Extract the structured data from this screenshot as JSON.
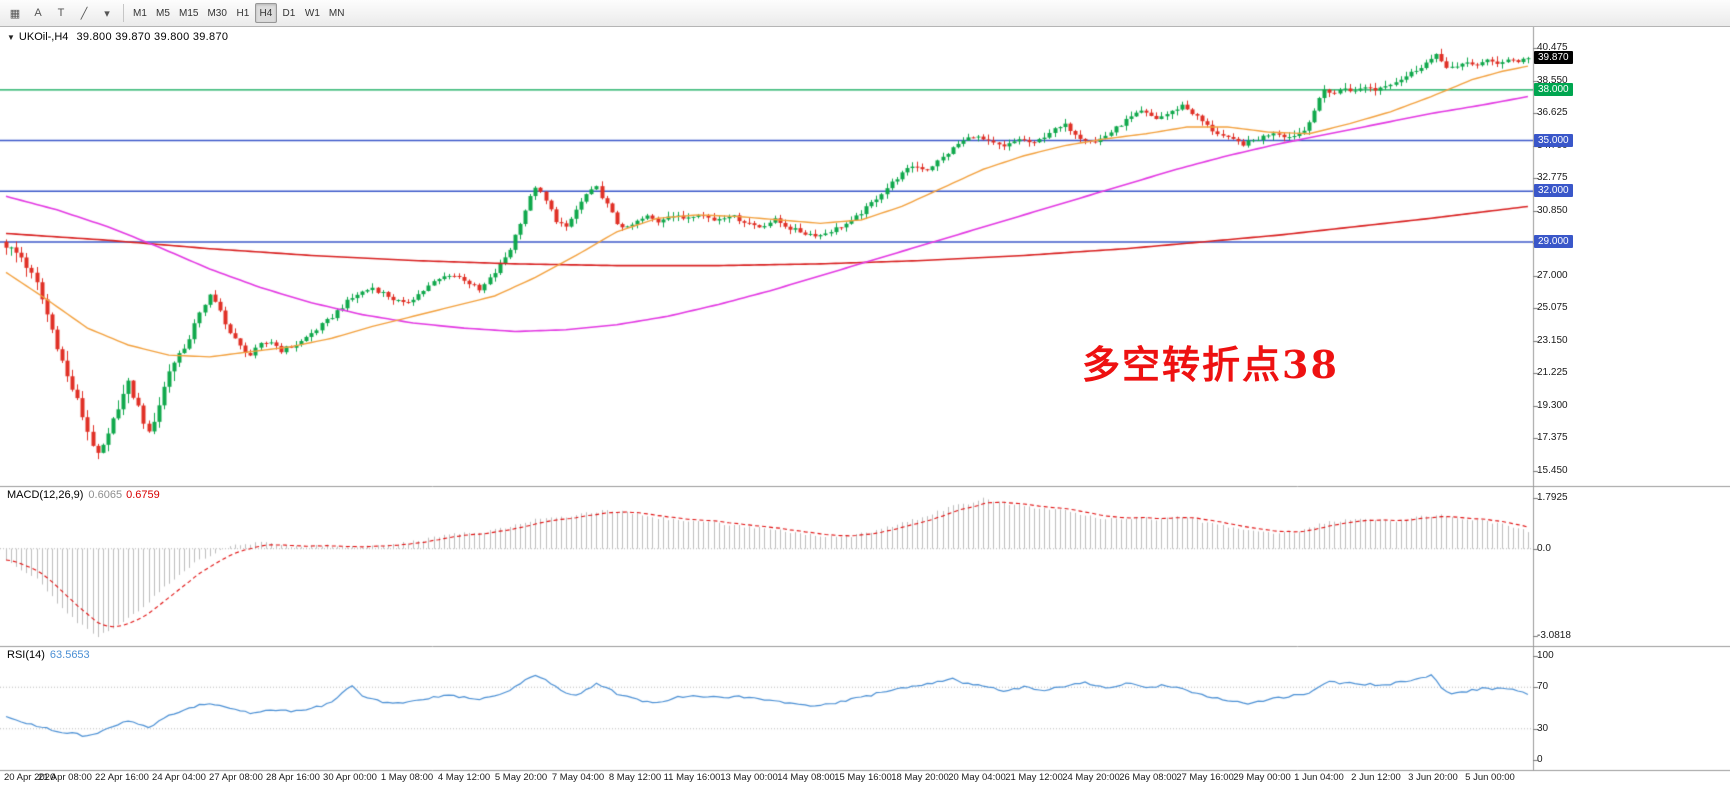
{
  "toolbar": {
    "tools": [
      {
        "name": "chart-grid-icon",
        "glyph": "▦"
      },
      {
        "name": "text-annotation-icon",
        "glyph": "A"
      },
      {
        "name": "template-icon",
        "glyph": "T"
      },
      {
        "name": "line-studies-icon",
        "glyph": "╱"
      },
      {
        "name": "dropdown-caret-icon",
        "glyph": "▾"
      }
    ],
    "timeframes": [
      "M1",
      "M5",
      "M15",
      "M30",
      "H1",
      "H4",
      "D1",
      "W1",
      "MN"
    ],
    "active_timeframe": "H4"
  },
  "chart": {
    "symbol_label": "UKOil-,H4",
    "ohlc_label": "39.800 39.870 39.800 39.870",
    "current_price": "39.870",
    "annotation": "多空转折点38",
    "price_axis": [
      "40.475",
      "38.550",
      "36.625",
      "34.700",
      "32.775",
      "30.850",
      "28.925",
      "27.000",
      "25.075",
      "23.150",
      "21.225",
      "19.300",
      "17.375",
      "15.450"
    ],
    "levels": [
      {
        "label": "38.000",
        "price": 38,
        "color": "#00a650"
      },
      {
        "label": "35.000",
        "price": 35,
        "color": "#3a57c9"
      },
      {
        "label": "32.000",
        "price": 32,
        "color": "#3a57c9"
      },
      {
        "label": "29.000",
        "price": 29,
        "color": "#3a57c9"
      }
    ]
  },
  "macd": {
    "name": "MACD(12,26,9)",
    "value_main": "0.6065",
    "value_signal": "0.6759",
    "axis": [
      "1.7925",
      "0.0",
      "-3.0818"
    ]
  },
  "rsi": {
    "name": "RSI(14)",
    "value": "63.5653",
    "axis": [
      "100",
      "70",
      "30",
      "0"
    ]
  },
  "dates": [
    "20 Apr 2020",
    "21 Apr 08:00",
    "22 Apr 16:00",
    "24 Apr 04:00",
    "27 Apr 08:00",
    "28 Apr 16:00",
    "30 Apr 00:00",
    "1 May 08:00",
    "4 May 12:00",
    "5 May 20:00",
    "7 May 04:00",
    "8 May 12:00",
    "11 May 16:00",
    "13 May 00:00",
    "14 May 08:00",
    "15 May 16:00",
    "18 May 20:00",
    "20 May 04:00",
    "21 May 12:00",
    "24 May 20:00",
    "26 May 08:00",
    "27 May 16:00",
    "29 May 00:00",
    "1 Jun 04:00",
    "2 Jun 12:00",
    "3 Jun 20:00",
    "5 Jun 00:00"
  ],
  "colors": {
    "up": "#10a84c",
    "down": "#e03026",
    "ma_fast": "#f2a03d",
    "ma_mid": "#e238e2",
    "ma_slow": "#d82020",
    "macd_hist": "#bdbdbd",
    "macd_signal": "#e01010",
    "rsi_line": "#4a8fd4",
    "level_green": "#00a650",
    "level_blue": "#3a57c9",
    "annotation": "#ee1111"
  },
  "chart_data": {
    "type": "candlestick",
    "symbol": "UKOil-",
    "timeframe": "H4",
    "last_ohlc": {
      "open": 39.8,
      "high": 39.87,
      "low": 39.8,
      "close": 39.87
    },
    "num_candles": 300,
    "price_range": [
      15.45,
      40.475
    ],
    "hline_prices": [
      38,
      35,
      32,
      29
    ],
    "close_anchors": [
      [
        0,
        28.8
      ],
      [
        3,
        28.1
      ],
      [
        6,
        26.5
      ],
      [
        9,
        23.8
      ],
      [
        12,
        21.0
      ],
      [
        14,
        19.6
      ],
      [
        16,
        17.8
      ],
      [
        18,
        16.3
      ],
      [
        20,
        17.5
      ],
      [
        22,
        19.3
      ],
      [
        24,
        20.6
      ],
      [
        26,
        19.2
      ],
      [
        28,
        17.6
      ],
      [
        30,
        19.4
      ],
      [
        32,
        21.4
      ],
      [
        34,
        22.4
      ],
      [
        36,
        23.2
      ],
      [
        38,
        24.9
      ],
      [
        40,
        25.8
      ],
      [
        42,
        24.9
      ],
      [
        44,
        23.6
      ],
      [
        46,
        22.8
      ],
      [
        48,
        22.3
      ],
      [
        50,
        22.9
      ],
      [
        52,
        23.1
      ],
      [
        54,
        22.6
      ],
      [
        56,
        22.8
      ],
      [
        58,
        23.1
      ],
      [
        60,
        23.6
      ],
      [
        63,
        24.3
      ],
      [
        66,
        25.2
      ],
      [
        69,
        25.9
      ],
      [
        72,
        26.3
      ],
      [
        75,
        25.8
      ],
      [
        78,
        25.3
      ],
      [
        81,
        25.9
      ],
      [
        84,
        26.6
      ],
      [
        87,
        27.1
      ],
      [
        90,
        26.8
      ],
      [
        93,
        26.1
      ],
      [
        95,
        26.8
      ],
      [
        97,
        27.6
      ],
      [
        99,
        28.6
      ],
      [
        101,
        30.2
      ],
      [
        103,
        31.6
      ],
      [
        104,
        32.3
      ],
      [
        106,
        31.4
      ],
      [
        108,
        30.3
      ],
      [
        110,
        29.8
      ],
      [
        112,
        30.9
      ],
      [
        114,
        31.8
      ],
      [
        116,
        32.2
      ],
      [
        118,
        31.2
      ],
      [
        120,
        30.1
      ],
      [
        122,
        29.8
      ],
      [
        124,
        30.2
      ],
      [
        126,
        30.5
      ],
      [
        128,
        30.2
      ],
      [
        130,
        30.6
      ],
      [
        133,
        30.4
      ],
      [
        136,
        30.7
      ],
      [
        139,
        30.3
      ],
      [
        142,
        30.6
      ],
      [
        145,
        30.2
      ],
      [
        148,
        29.9
      ],
      [
        151,
        30.3
      ],
      [
        154,
        29.8
      ],
      [
        157,
        29.5
      ],
      [
        160,
        29.4
      ],
      [
        163,
        29.8
      ],
      [
        166,
        30.2
      ],
      [
        169,
        31.0
      ],
      [
        172,
        31.9
      ],
      [
        175,
        32.8
      ],
      [
        178,
        33.5
      ],
      [
        181,
        33.3
      ],
      [
        184,
        34.0
      ],
      [
        187,
        34.8
      ],
      [
        190,
        35.3
      ],
      [
        193,
        34.9
      ],
      [
        196,
        34.6
      ],
      [
        199,
        35.1
      ],
      [
        202,
        34.8
      ],
      [
        205,
        35.5
      ],
      [
        208,
        35.9
      ],
      [
        211,
        35.2
      ],
      [
        214,
        34.9
      ],
      [
        217,
        35.5
      ],
      [
        220,
        36.2
      ],
      [
        223,
        36.7
      ],
      [
        226,
        36.3
      ],
      [
        229,
        36.7
      ],
      [
        231,
        37.1
      ],
      [
        234,
        36.4
      ],
      [
        237,
        35.6
      ],
      [
        240,
        35.1
      ],
      [
        243,
        34.8
      ],
      [
        246,
        35.1
      ],
      [
        249,
        35.5
      ],
      [
        252,
        35.2
      ],
      [
        255,
        35.6
      ],
      [
        257,
        36.8
      ],
      [
        259,
        38.0
      ],
      [
        261,
        37.8
      ],
      [
        263,
        38.1
      ],
      [
        265,
        37.9
      ],
      [
        267,
        38.2
      ],
      [
        269,
        38.0
      ],
      [
        271,
        38.3
      ],
      [
        273,
        38.5
      ],
      [
        275,
        38.8
      ],
      [
        277,
        39.2
      ],
      [
        279,
        39.6
      ],
      [
        281,
        40.0
      ],
      [
        283,
        39.4
      ],
      [
        285,
        39.3
      ],
      [
        287,
        39.6
      ],
      [
        289,
        39.5
      ],
      [
        291,
        39.7
      ],
      [
        293,
        39.6
      ],
      [
        295,
        39.8
      ],
      [
        297,
        39.7
      ],
      [
        299,
        39.87
      ]
    ],
    "ma_fast_anchors": [
      [
        0,
        27.2
      ],
      [
        8,
        25.6
      ],
      [
        16,
        23.9
      ],
      [
        24,
        22.9
      ],
      [
        32,
        22.3
      ],
      [
        40,
        22.2
      ],
      [
        48,
        22.5
      ],
      [
        56,
        22.8
      ],
      [
        64,
        23.3
      ],
      [
        72,
        24.0
      ],
      [
        80,
        24.6
      ],
      [
        88,
        25.2
      ],
      [
        96,
        25.8
      ],
      [
        104,
        26.9
      ],
      [
        112,
        28.2
      ],
      [
        120,
        29.6
      ],
      [
        128,
        30.4
      ],
      [
        136,
        30.6
      ],
      [
        144,
        30.5
      ],
      [
        152,
        30.3
      ],
      [
        160,
        30.1
      ],
      [
        168,
        30.3
      ],
      [
        176,
        31.1
      ],
      [
        184,
        32.2
      ],
      [
        192,
        33.3
      ],
      [
        200,
        34.1
      ],
      [
        208,
        34.7
      ],
      [
        216,
        35.1
      ],
      [
        224,
        35.4
      ],
      [
        232,
        35.8
      ],
      [
        240,
        35.8
      ],
      [
        248,
        35.5
      ],
      [
        256,
        35.4
      ],
      [
        264,
        36.0
      ],
      [
        272,
        36.7
      ],
      [
        280,
        37.6
      ],
      [
        288,
        38.6
      ],
      [
        294,
        39.1
      ],
      [
        299,
        39.4
      ]
    ],
    "ma_mid_anchors": [
      [
        0,
        31.7
      ],
      [
        10,
        30.9
      ],
      [
        20,
        29.9
      ],
      [
        30,
        28.7
      ],
      [
        40,
        27.4
      ],
      [
        50,
        26.3
      ],
      [
        60,
        25.4
      ],
      [
        70,
        24.7
      ],
      [
        80,
        24.2
      ],
      [
        90,
        23.9
      ],
      [
        100,
        23.7
      ],
      [
        110,
        23.8
      ],
      [
        120,
        24.1
      ],
      [
        130,
        24.6
      ],
      [
        140,
        25.3
      ],
      [
        150,
        26.1
      ],
      [
        160,
        27.0
      ],
      [
        170,
        27.9
      ],
      [
        180,
        28.8
      ],
      [
        190,
        29.7
      ],
      [
        200,
        30.6
      ],
      [
        210,
        31.5
      ],
      [
        220,
        32.4
      ],
      [
        230,
        33.3
      ],
      [
        240,
        34.1
      ],
      [
        250,
        34.8
      ],
      [
        260,
        35.4
      ],
      [
        270,
        36.0
      ],
      [
        280,
        36.6
      ],
      [
        290,
        37.1
      ],
      [
        299,
        37.6
      ]
    ],
    "ma_slow_anchors": [
      [
        0,
        29.5
      ],
      [
        20,
        29.1
      ],
      [
        40,
        28.6
      ],
      [
        60,
        28.2
      ],
      [
        80,
        27.9
      ],
      [
        100,
        27.7
      ],
      [
        120,
        27.6
      ],
      [
        140,
        27.6
      ],
      [
        160,
        27.7
      ],
      [
        180,
        27.9
      ],
      [
        200,
        28.2
      ],
      [
        220,
        28.6
      ],
      [
        235,
        29.0
      ],
      [
        250,
        29.4
      ],
      [
        265,
        29.9
      ],
      [
        280,
        30.4
      ],
      [
        299,
        31.1
      ]
    ],
    "macd_range": [
      -3.0818,
      1.7925
    ],
    "macd_anchors": [
      [
        0,
        -0.4
      ],
      [
        6,
        -1.1
      ],
      [
        10,
        -1.9
      ],
      [
        14,
        -2.6
      ],
      [
        18,
        -3.08
      ],
      [
        22,
        -2.7
      ],
      [
        26,
        -2.2
      ],
      [
        30,
        -1.5
      ],
      [
        34,
        -0.9
      ],
      [
        38,
        -0.4
      ],
      [
        42,
        -0.05
      ],
      [
        46,
        0.15
      ],
      [
        50,
        0.22
      ],
      [
        54,
        0.12
      ],
      [
        58,
        0.08
      ],
      [
        62,
        0.12
      ],
      [
        66,
        0.08
      ],
      [
        70,
        0.05
      ],
      [
        74,
        0.1
      ],
      [
        78,
        0.2
      ],
      [
        82,
        0.32
      ],
      [
        86,
        0.45
      ],
      [
        90,
        0.55
      ],
      [
        94,
        0.6
      ],
      [
        98,
        0.75
      ],
      [
        102,
        0.95
      ],
      [
        106,
        1.1
      ],
      [
        110,
        1.15
      ],
      [
        114,
        1.25
      ],
      [
        118,
        1.35
      ],
      [
        122,
        1.3
      ],
      [
        126,
        1.15
      ],
      [
        130,
        1.05
      ],
      [
        134,
        1.0
      ],
      [
        138,
        0.95
      ],
      [
        142,
        0.85
      ],
      [
        146,
        0.75
      ],
      [
        150,
        0.7
      ],
      [
        154,
        0.6
      ],
      [
        158,
        0.5
      ],
      [
        162,
        0.42
      ],
      [
        166,
        0.45
      ],
      [
        170,
        0.6
      ],
      [
        174,
        0.8
      ],
      [
        178,
        1.0
      ],
      [
        182,
        1.25
      ],
      [
        186,
        1.5
      ],
      [
        190,
        1.65
      ],
      [
        192,
        1.79
      ],
      [
        194,
        1.7
      ],
      [
        198,
        1.55
      ],
      [
        202,
        1.45
      ],
      [
        206,
        1.4
      ],
      [
        210,
        1.25
      ],
      [
        214,
        1.1
      ],
      [
        218,
        1.05
      ],
      [
        222,
        1.1
      ],
      [
        226,
        1.05
      ],
      [
        230,
        1.1
      ],
      [
        234,
        1.0
      ],
      [
        238,
        0.85
      ],
      [
        242,
        0.7
      ],
      [
        246,
        0.6
      ],
      [
        250,
        0.55
      ],
      [
        254,
        0.6
      ],
      [
        258,
        0.85
      ],
      [
        262,
        1.0
      ],
      [
        266,
        1.05
      ],
      [
        270,
        1.0
      ],
      [
        274,
        1.0
      ],
      [
        278,
        1.15
      ],
      [
        282,
        1.2
      ],
      [
        286,
        1.05
      ],
      [
        290,
        1.0
      ],
      [
        294,
        0.85
      ],
      [
        299,
        0.6065
      ]
    ],
    "rsi_range": [
      0,
      100
    ],
    "rsi_anchors": [
      [
        0,
        41
      ],
      [
        4,
        36
      ],
      [
        8,
        30
      ],
      [
        12,
        26
      ],
      [
        16,
        23
      ],
      [
        20,
        30
      ],
      [
        24,
        38
      ],
      [
        28,
        31
      ],
      [
        32,
        43
      ],
      [
        36,
        50
      ],
      [
        40,
        55
      ],
      [
        44,
        49
      ],
      [
        48,
        45
      ],
      [
        52,
        48
      ],
      [
        56,
        47
      ],
      [
        60,
        50
      ],
      [
        62,
        52
      ],
      [
        64,
        55
      ],
      [
        66,
        64
      ],
      [
        68,
        71
      ],
      [
        70,
        62
      ],
      [
        72,
        58
      ],
      [
        76,
        54
      ],
      [
        80,
        56
      ],
      [
        84,
        60
      ],
      [
        88,
        62
      ],
      [
        92,
        58
      ],
      [
        96,
        61
      ],
      [
        100,
        70
      ],
      [
        102,
        78
      ],
      [
        104,
        82
      ],
      [
        106,
        77
      ],
      [
        108,
        71
      ],
      [
        110,
        65
      ],
      [
        112,
        62
      ],
      [
        114,
        68
      ],
      [
        116,
        73
      ],
      [
        118,
        70
      ],
      [
        120,
        63
      ],
      [
        124,
        58
      ],
      [
        128,
        55
      ],
      [
        132,
        60
      ],
      [
        136,
        62
      ],
      [
        140,
        60
      ],
      [
        144,
        61
      ],
      [
        148,
        59
      ],
      [
        152,
        56
      ],
      [
        156,
        53
      ],
      [
        160,
        52
      ],
      [
        164,
        56
      ],
      [
        168,
        60
      ],
      [
        172,
        65
      ],
      [
        176,
        69
      ],
      [
        180,
        72
      ],
      [
        184,
        76
      ],
      [
        186,
        78
      ],
      [
        188,
        74
      ],
      [
        192,
        71
      ],
      [
        196,
        67
      ],
      [
        200,
        70
      ],
      [
        204,
        67
      ],
      [
        208,
        71
      ],
      [
        212,
        74
      ],
      [
        216,
        69
      ],
      [
        220,
        74
      ],
      [
        224,
        70
      ],
      [
        228,
        72
      ],
      [
        232,
        67
      ],
      [
        236,
        61
      ],
      [
        240,
        57
      ],
      [
        244,
        54
      ],
      [
        248,
        58
      ],
      [
        252,
        61
      ],
      [
        256,
        64
      ],
      [
        258,
        71
      ],
      [
        260,
        76
      ],
      [
        262,
        73
      ],
      [
        264,
        74
      ],
      [
        266,
        72
      ],
      [
        268,
        73
      ],
      [
        270,
        71
      ],
      [
        272,
        73
      ],
      [
        274,
        75
      ],
      [
        276,
        77
      ],
      [
        278,
        79
      ],
      [
        280,
        81
      ],
      [
        282,
        70
      ],
      [
        284,
        63
      ],
      [
        286,
        65
      ],
      [
        288,
        67
      ],
      [
        290,
        69
      ],
      [
        292,
        68
      ],
      [
        294,
        69
      ],
      [
        296,
        68
      ],
      [
        298,
        66
      ],
      [
        299,
        63.57
      ]
    ]
  }
}
